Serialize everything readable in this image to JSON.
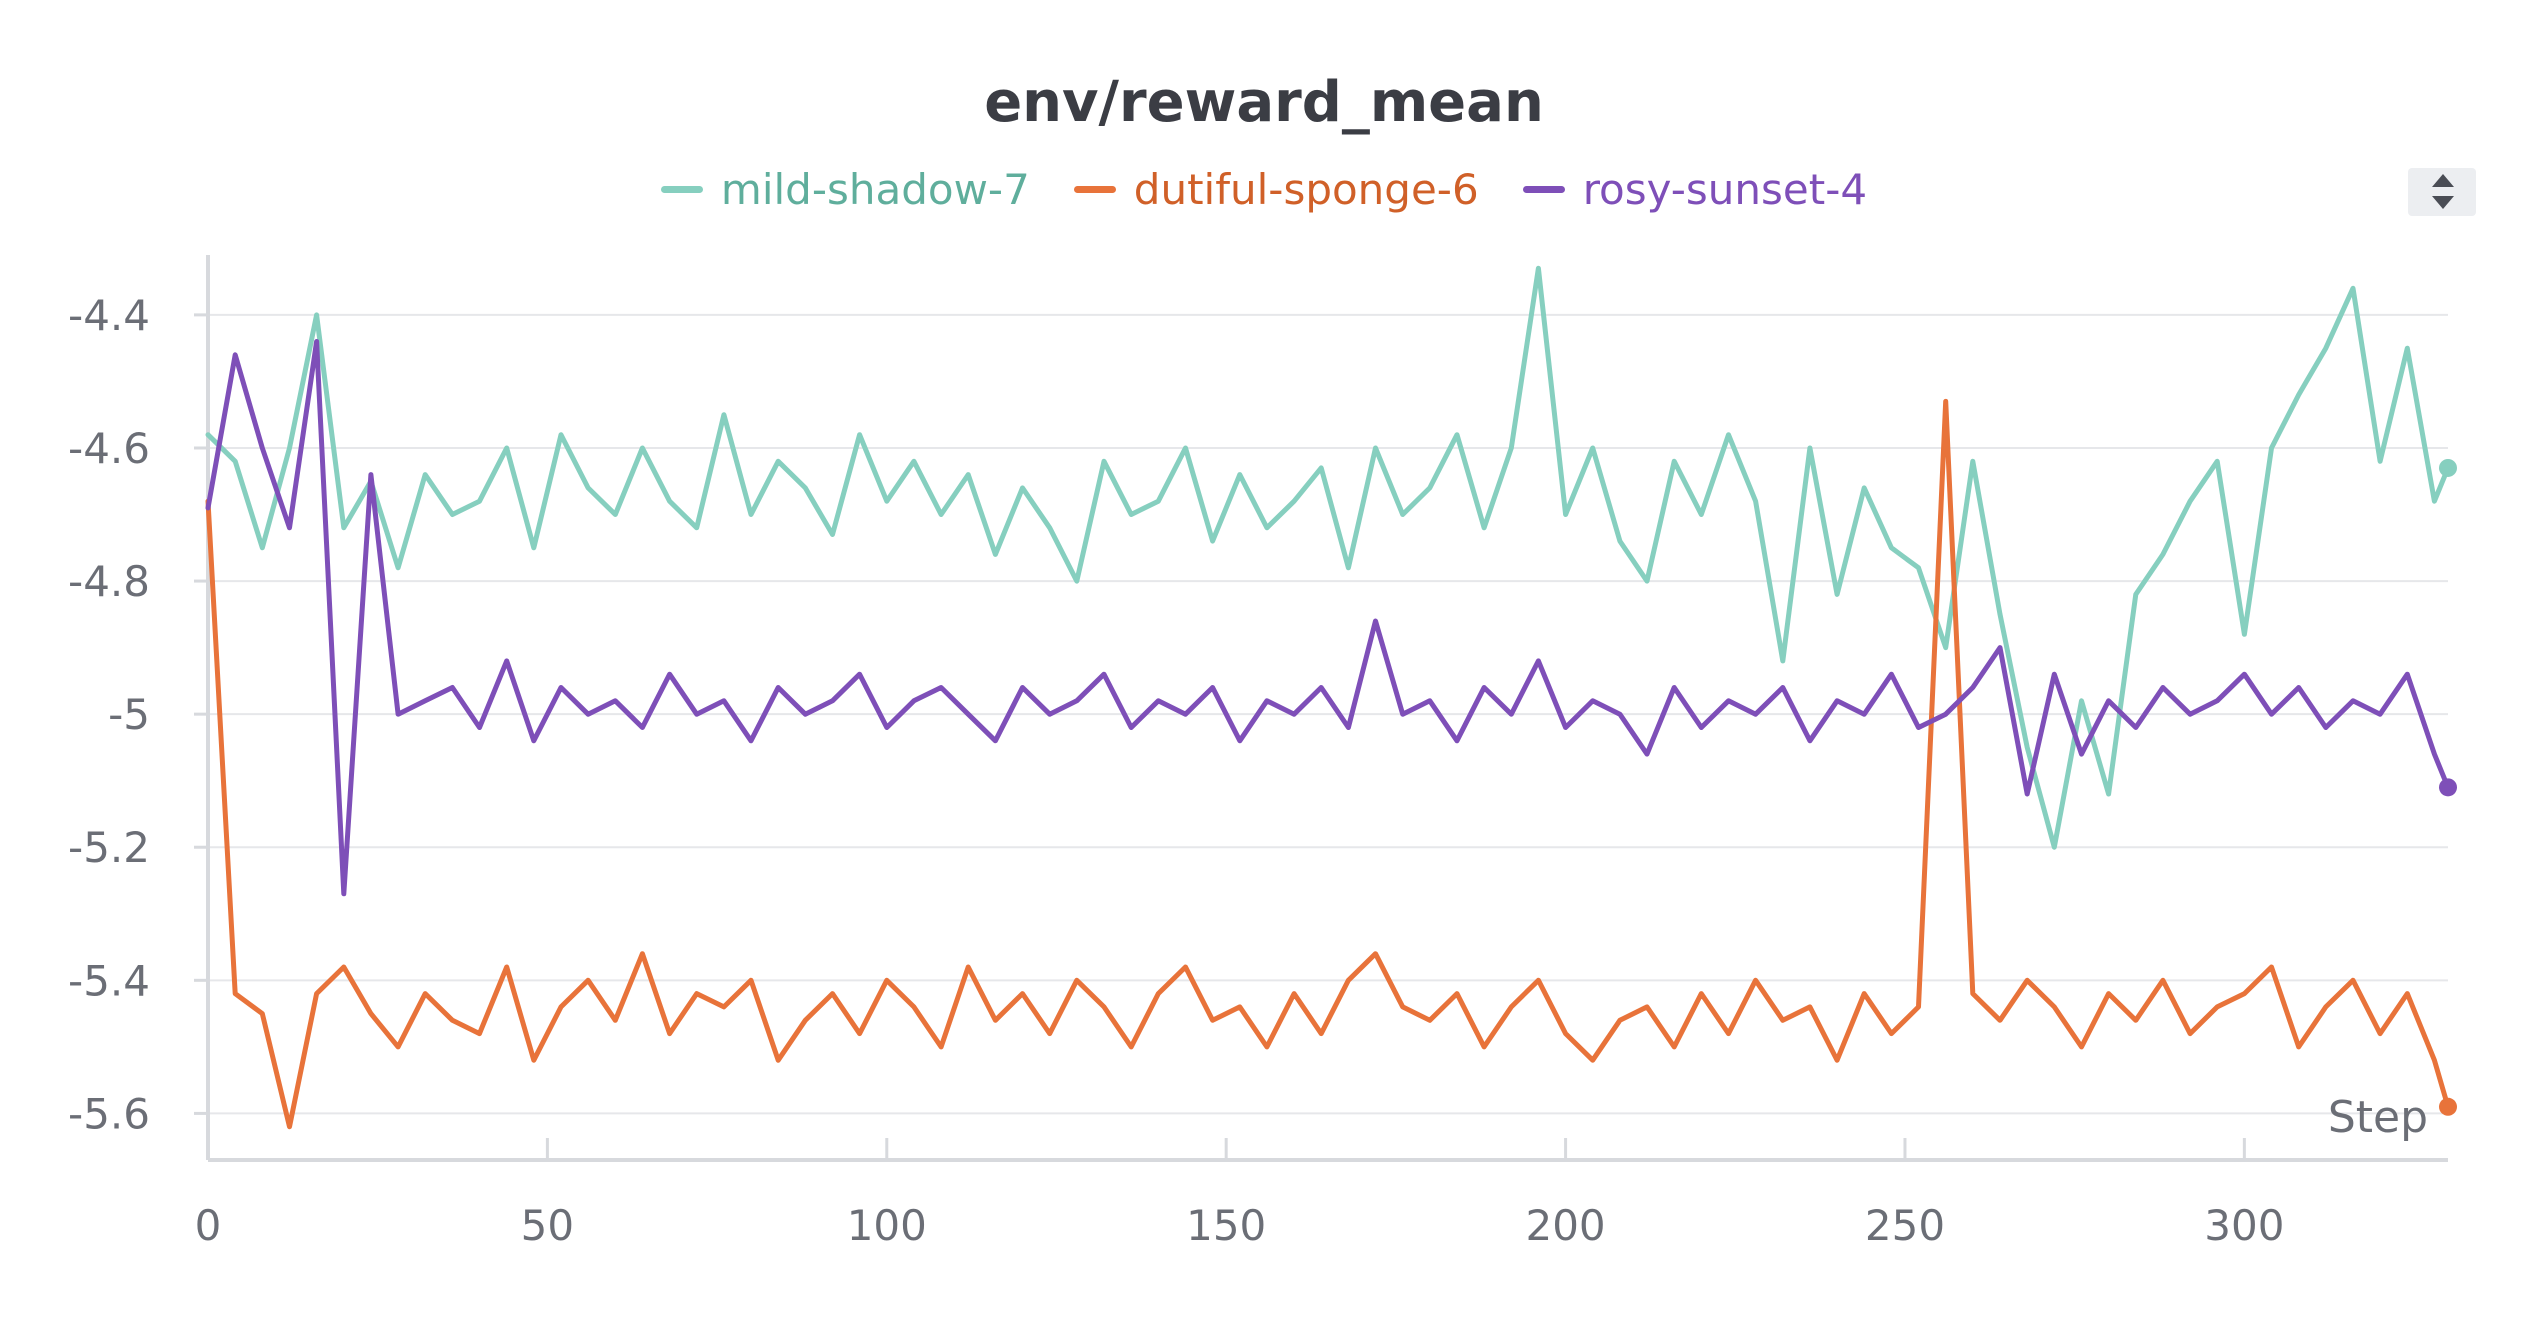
{
  "chart_data": {
    "type": "line",
    "title": "env/reward_mean",
    "xlabel": "Step",
    "ylabel": "",
    "xlim": [
      0,
      330
    ],
    "ylim": [
      -5.67,
      -4.31
    ],
    "x_ticks": [
      "0",
      "50",
      "100",
      "150",
      "200",
      "250",
      "300"
    ],
    "x_tick_values": [
      0,
      50,
      100,
      150,
      200,
      250,
      300
    ],
    "y_ticks": [
      "-4.4",
      "-4.6",
      "-4.8",
      "-5",
      "-5.2",
      "-5.4",
      "-5.6"
    ],
    "y_tick_values": [
      -4.4,
      -4.6,
      -4.8,
      -5.0,
      -5.2,
      -5.4,
      -5.6
    ],
    "grid": true,
    "legend_position": "top-center",
    "x": [
      0,
      4,
      8,
      12,
      16,
      20,
      24,
      28,
      32,
      36,
      40,
      44,
      48,
      52,
      56,
      60,
      64,
      68,
      72,
      76,
      80,
      84,
      88,
      92,
      96,
      100,
      104,
      108,
      112,
      116,
      120,
      124,
      128,
      132,
      136,
      140,
      144,
      148,
      152,
      156,
      160,
      164,
      168,
      172,
      176,
      180,
      184,
      188,
      192,
      196,
      200,
      204,
      208,
      212,
      216,
      220,
      224,
      228,
      232,
      236,
      240,
      244,
      248,
      252,
      256,
      260,
      264,
      268,
      272,
      276,
      280,
      284,
      288,
      292,
      296,
      300,
      304,
      308,
      312,
      316,
      320,
      324,
      328,
      330
    ],
    "series": [
      {
        "name": "mild-shadow-7",
        "color": "#86cfbf",
        "values": [
          -4.58,
          -4.62,
          -4.75,
          -4.6,
          -4.4,
          -4.72,
          -4.65,
          -4.78,
          -4.64,
          -4.7,
          -4.68,
          -4.6,
          -4.75,
          -4.58,
          -4.66,
          -4.7,
          -4.6,
          -4.68,
          -4.72,
          -4.55,
          -4.7,
          -4.62,
          -4.66,
          -4.73,
          -4.58,
          -4.68,
          -4.62,
          -4.7,
          -4.64,
          -4.76,
          -4.66,
          -4.72,
          -4.8,
          -4.62,
          -4.7,
          -4.68,
          -4.6,
          -4.74,
          -4.64,
          -4.72,
          -4.68,
          -4.63,
          -4.78,
          -4.6,
          -4.7,
          -4.66,
          -4.58,
          -4.72,
          -4.6,
          -4.33,
          -4.7,
          -4.6,
          -4.74,
          -4.8,
          -4.62,
          -4.7,
          -4.58,
          -4.68,
          -4.92,
          -4.6,
          -4.82,
          -4.66,
          -4.75,
          -4.78,
          -4.9,
          -4.62,
          -4.85,
          -5.05,
          -5.2,
          -4.98,
          -5.12,
          -4.82,
          -4.76,
          -4.68,
          -4.62,
          -4.88,
          -4.6,
          -4.52,
          -4.45,
          -4.36,
          -4.62,
          -4.45,
          -4.68,
          -4.63
        ]
      },
      {
        "name": "dutiful-sponge-6",
        "color": "#e8733a",
        "values": [
          -4.68,
          -5.42,
          -5.45,
          -5.62,
          -5.42,
          -5.38,
          -5.45,
          -5.5,
          -5.42,
          -5.46,
          -5.48,
          -5.38,
          -5.52,
          -5.44,
          -5.4,
          -5.46,
          -5.36,
          -5.48,
          -5.42,
          -5.44,
          -5.4,
          -5.52,
          -5.46,
          -5.42,
          -5.48,
          -5.4,
          -5.44,
          -5.5,
          -5.38,
          -5.46,
          -5.42,
          -5.48,
          -5.4,
          -5.44,
          -5.5,
          -5.42,
          -5.38,
          -5.46,
          -5.44,
          -5.5,
          -5.42,
          -5.48,
          -5.4,
          -5.36,
          -5.44,
          -5.46,
          -5.42,
          -5.5,
          -5.44,
          -5.4,
          -5.48,
          -5.52,
          -5.46,
          -5.44,
          -5.5,
          -5.42,
          -5.48,
          -5.4,
          -5.46,
          -5.44,
          -5.52,
          -5.42,
          -5.48,
          -5.44,
          -4.53,
          -5.42,
          -5.46,
          -5.4,
          -5.44,
          -5.5,
          -5.42,
          -5.46,
          -5.4,
          -5.48,
          -5.44,
          -5.42,
          -5.38,
          -5.5,
          -5.44,
          -5.4,
          -5.48,
          -5.42,
          -5.52,
          -5.59
        ]
      },
      {
        "name": "rosy-sunset-4",
        "color": "#7e4fb8",
        "values": [
          -4.69,
          -4.46,
          -4.6,
          -4.72,
          -4.44,
          -5.27,
          -4.64,
          -5.0,
          -4.98,
          -4.96,
          -5.02,
          -4.92,
          -5.04,
          -4.96,
          -5.0,
          -4.98,
          -5.02,
          -4.94,
          -5.0,
          -4.98,
          -5.04,
          -4.96,
          -5.0,
          -4.98,
          -4.94,
          -5.02,
          -4.98,
          -4.96,
          -5.0,
          -5.04,
          -4.96,
          -5.0,
          -4.98,
          -4.94,
          -5.02,
          -4.98,
          -5.0,
          -4.96,
          -5.04,
          -4.98,
          -5.0,
          -4.96,
          -5.02,
          -4.86,
          -5.0,
          -4.98,
          -5.04,
          -4.96,
          -5.0,
          -4.92,
          -5.02,
          -4.98,
          -5.0,
          -5.06,
          -4.96,
          -5.02,
          -4.98,
          -5.0,
          -4.96,
          -5.04,
          -4.98,
          -5.0,
          -4.94,
          -5.02,
          -5.0,
          -4.96,
          -4.9,
          -5.12,
          -4.94,
          -5.06,
          -4.98,
          -5.02,
          -4.96,
          -5.0,
          -4.98,
          -4.94,
          -5.0,
          -4.96,
          -5.02,
          -4.98,
          -5.0,
          -4.94,
          -5.06,
          -5.11
        ]
      }
    ]
  }
}
